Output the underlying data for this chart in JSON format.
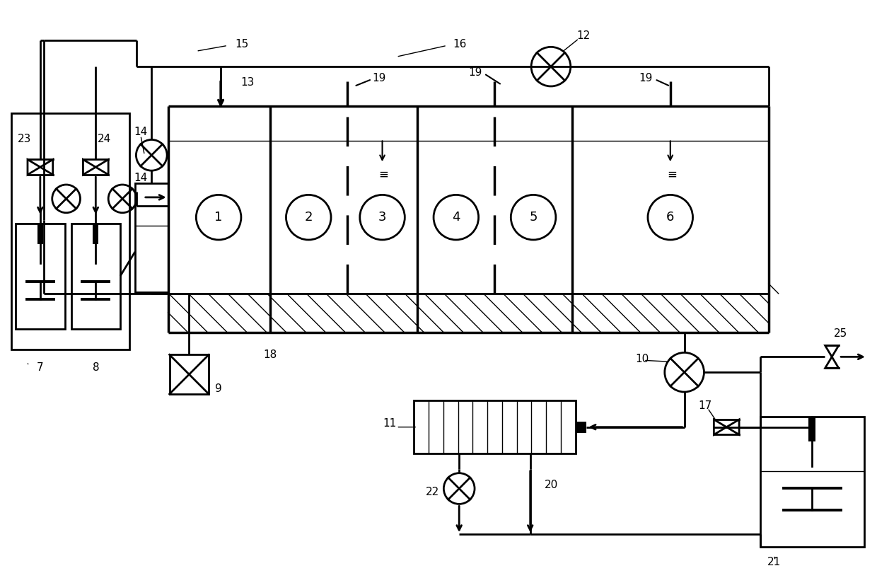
{
  "bg_color": "#ffffff",
  "lw": 2.0,
  "lw_thin": 1.0,
  "lw_thick": 2.5,
  "fig_width": 12.4,
  "fig_height": 8.17
}
